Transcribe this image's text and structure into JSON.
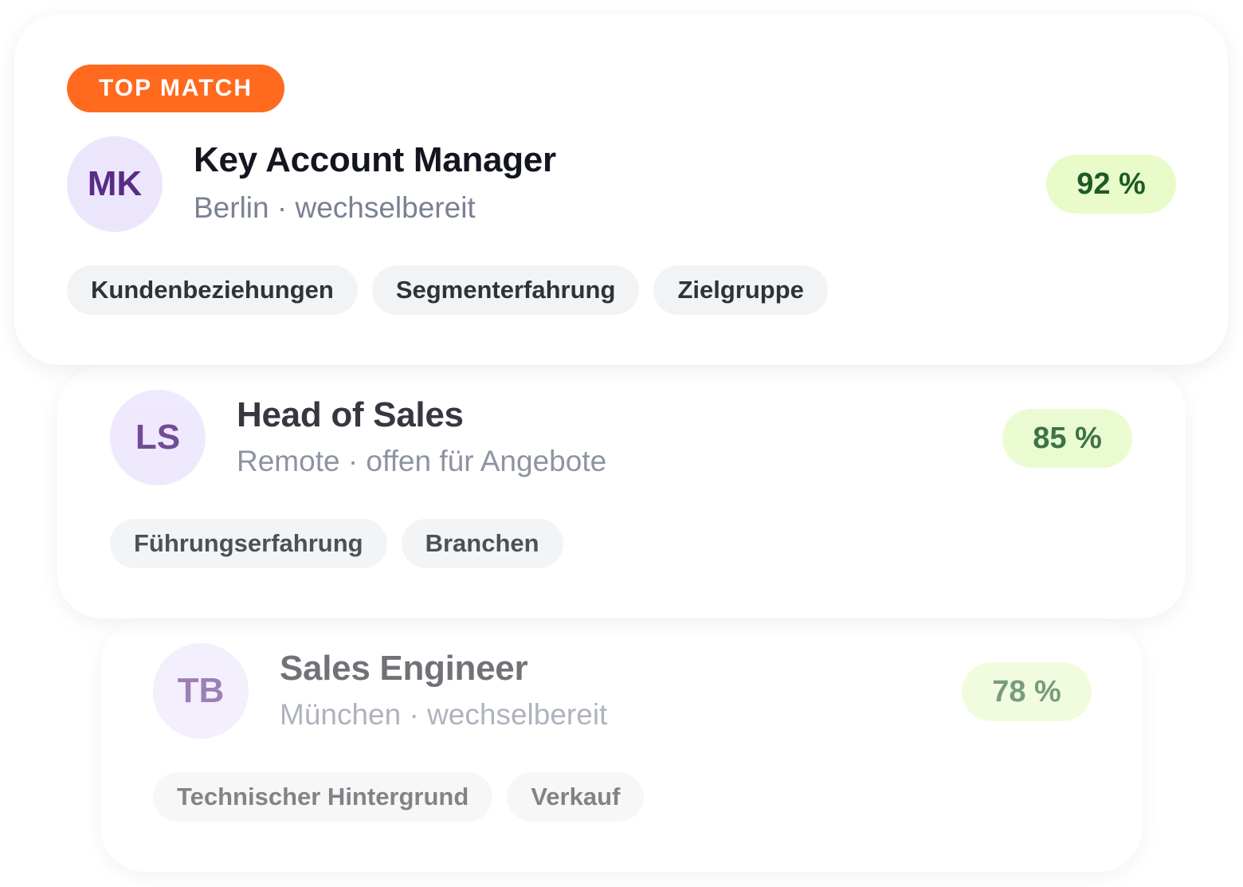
{
  "cards": [
    {
      "badge": "TOP MATCH",
      "initials": "MK",
      "title": "Key Account Manager",
      "subtitle": "Berlin · wechselbereit",
      "score": "92 %",
      "tags": [
        "Kundenbeziehungen",
        "Segmenterfahrung",
        "Zielgruppe"
      ]
    },
    {
      "initials": "LS",
      "title": "Head of Sales",
      "subtitle": "Remote · offen für Angebote",
      "score": "85 %",
      "tags": [
        "Führungserfahrung",
        "Branchen"
      ]
    },
    {
      "initials": "TB",
      "title": "Sales Engineer",
      "subtitle": "München · wechselbereit",
      "score": "78 %",
      "tags": [
        "Technischer Hintergrund",
        "Verkauf"
      ]
    }
  ],
  "colors": {
    "accent": "#ff6a1f",
    "avatar_bg": "#ece6fd",
    "avatar_text": "#5b2c83",
    "score_bg": "#e8fbc9",
    "score_text": "#1d5a2a",
    "tag_bg": "#f2f3f5"
  }
}
